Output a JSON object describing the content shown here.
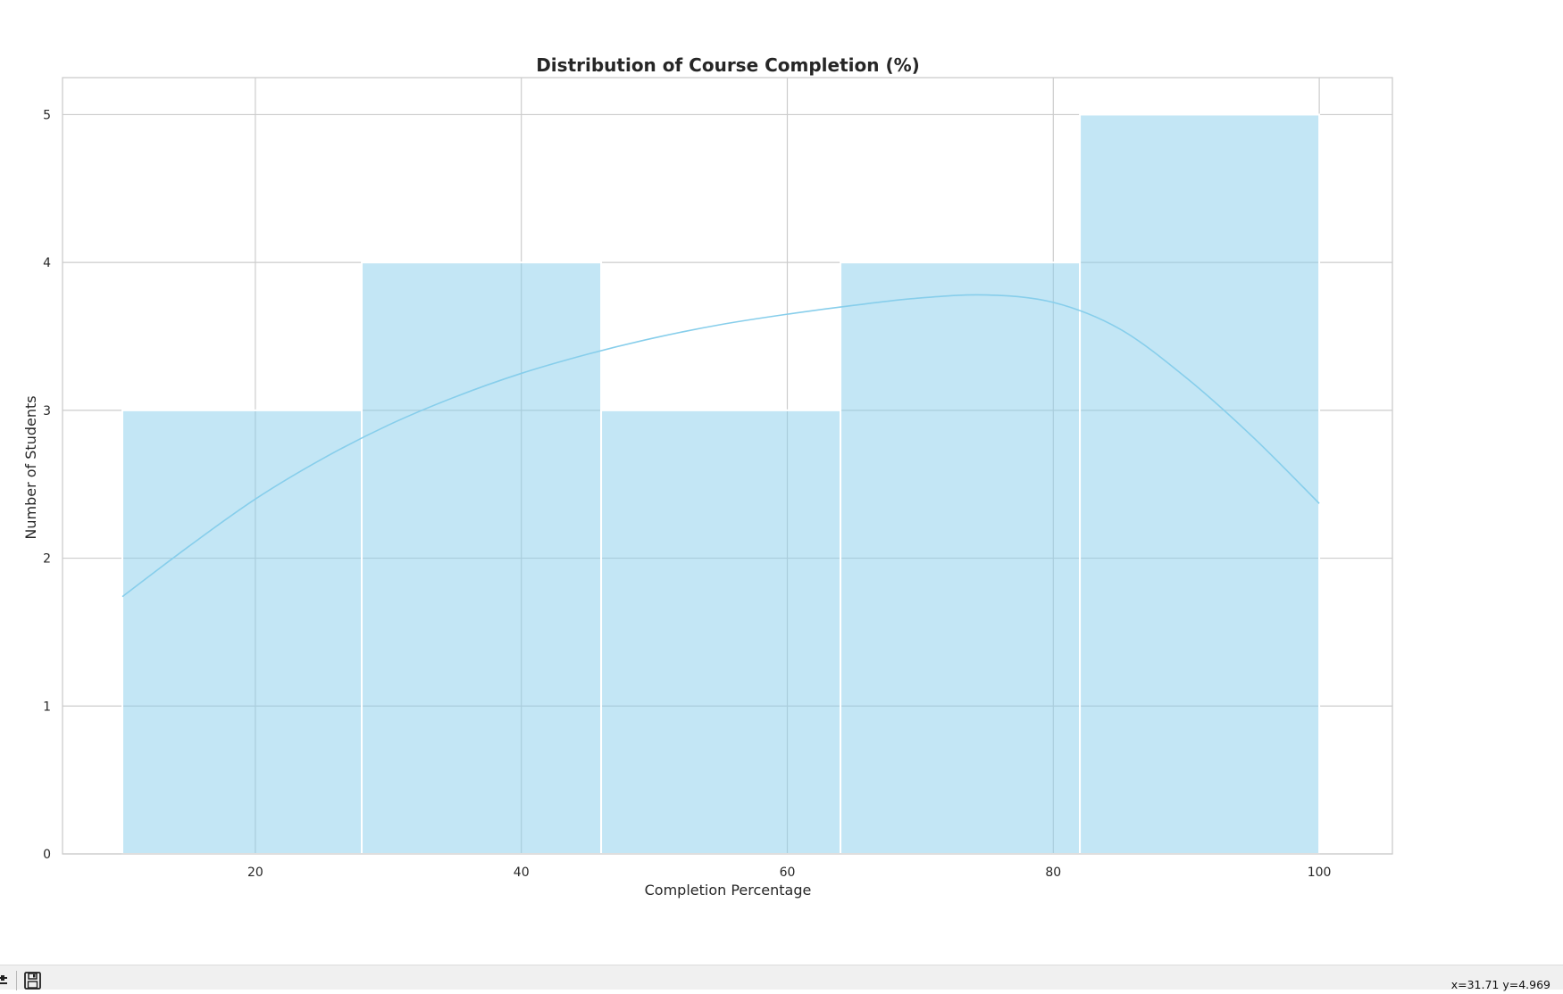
{
  "chart_data": {
    "type": "bar",
    "subtype": "histogram-with-kde",
    "title": "Distribution of Course Completion (%)",
    "xlabel": "Completion Percentage",
    "ylabel": "Number of Students",
    "xlim": [
      5.5,
      105.5
    ],
    "ylim": [
      0,
      5.25
    ],
    "xticks": [
      20,
      40,
      60,
      80,
      100
    ],
    "yticks": [
      0,
      1,
      2,
      3,
      4,
      5
    ],
    "bins": [
      {
        "x0": 10,
        "x1": 28,
        "count": 3
      },
      {
        "x0": 28,
        "x1": 46,
        "count": 4
      },
      {
        "x0": 46,
        "x1": 64,
        "count": 3
      },
      {
        "x0": 64,
        "x1": 82,
        "count": 4
      },
      {
        "x0": 82,
        "x1": 100,
        "count": 5
      }
    ],
    "kde": {
      "x": [
        10,
        15,
        20,
        25,
        30,
        35,
        40,
        45,
        50,
        55,
        60,
        65,
        70,
        75,
        80,
        85,
        90,
        95,
        100
      ],
      "y": [
        1.74,
        2.08,
        2.4,
        2.67,
        2.9,
        3.09,
        3.25,
        3.38,
        3.49,
        3.58,
        3.65,
        3.71,
        3.76,
        3.78,
        3.73,
        3.55,
        3.22,
        2.82,
        2.37
      ]
    },
    "grid": true,
    "legend": "none",
    "bar_color": "#87ceeb",
    "line_color": "#87ceeb"
  },
  "toolbar": {
    "icons": [
      "configure-icon",
      "save-icon"
    ],
    "coords_readout": "x=31.71 y=4.969"
  }
}
